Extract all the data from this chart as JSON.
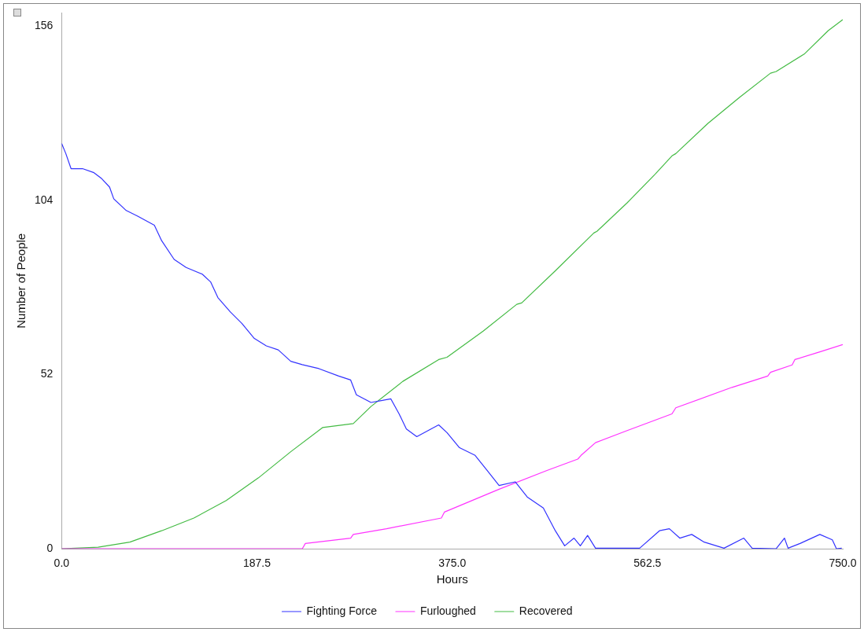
{
  "chart_data": {
    "type": "line",
    "xlabel": "Hours",
    "ylabel": "Number of People",
    "xlim": [
      0,
      750
    ],
    "xticks": [
      {
        "value": 0,
        "label": "0.0"
      },
      {
        "value": 187.5,
        "label": "187.5"
      },
      {
        "value": 375,
        "label": "375.0"
      },
      {
        "value": 562.5,
        "label": "562.5"
      },
      {
        "value": 750,
        "label": "750.0"
      }
    ],
    "ylim": [
      0,
      160
    ],
    "yticks": [
      0,
      52,
      104,
      156
    ],
    "grid": false,
    "legend": "bottom",
    "marker": "none",
    "line_style": "solid",
    "series": [
      {
        "name": "Fighting Force",
        "color": "#3333ff",
        "x": [
          0,
          4,
          9,
          20,
          31,
          38.5,
          46,
          50,
          62,
          73,
          89,
          96,
          108,
          119.5,
          135,
          143,
          150,
          162,
          173,
          185,
          196.5,
          208,
          220,
          231,
          247,
          266,
          277.5,
          283,
          297,
          308,
          316,
          324,
          331,
          341,
          362,
          370,
          382,
          397,
          408.5,
          420,
          435.5,
          447,
          462.5,
          474,
          483,
          492,
          498,
          505,
          512.6,
          555,
          574,
          583.5,
          593.5,
          605,
          617,
          636,
          655,
          663,
          686,
          694,
          697.5,
          709,
          728,
          740,
          744,
          749
        ],
        "values": [
          121,
          118,
          113.5,
          113.5,
          112.3,
          110.5,
          108,
          104.5,
          101,
          99.3,
          96.6,
          92,
          86.4,
          84,
          82,
          79.7,
          75,
          70.7,
          67.3,
          62.8,
          60.6,
          59.4,
          56,
          55,
          53.8,
          51.6,
          50.4,
          46,
          43.7,
          44.3,
          44.8,
          40.3,
          35.8,
          33.5,
          37,
          34.7,
          30.2,
          27.9,
          23.4,
          18.9,
          20,
          15.5,
          12.2,
          5.4,
          0.9,
          3.2,
          0.9,
          4,
          0.2,
          0.2,
          5.4,
          6,
          3.2,
          4.3,
          2,
          0.2,
          3.2,
          0.2,
          0,
          3.2,
          0.2,
          1.6,
          4.3,
          2.7,
          0,
          0.2
        ]
      },
      {
        "name": "Furloughed",
        "color": "#ff33ff",
        "x": [
          0,
          231,
          234,
          277.5,
          280,
          312,
          364.6,
          367.6,
          420,
          466,
          495.6,
          498.7,
          512.6,
          543,
          586,
          589.7,
          643.6,
          678,
          680.6,
          701.4,
          704,
          728,
          750
        ],
        "values": [
          0,
          0,
          1.6,
          3.2,
          4.3,
          6,
          9.2,
          11,
          17.8,
          23.4,
          26.8,
          27.9,
          31.7,
          35.3,
          40.3,
          42.1,
          48.2,
          51.6,
          52.7,
          54.9,
          56.5,
          58.8,
          61
        ]
      },
      {
        "name": "Recovered",
        "color": "#44bb44",
        "x": [
          0,
          35,
          65.5,
          96,
          127,
          158,
          189,
          220,
          250.5,
          280,
          297,
          327.6,
          362,
          370,
          404.7,
          437,
          441.7,
          474,
          511,
          514,
          543,
          570,
          586,
          589.7,
          620.5,
          651,
          680.6,
          686,
          713,
          736,
          750
        ],
        "values": [
          0,
          0.5,
          2,
          5.4,
          9.2,
          14.4,
          21.2,
          29,
          36.2,
          37.4,
          42.5,
          50,
          56.5,
          57.2,
          65,
          73,
          73.4,
          83,
          94.3,
          94.8,
          103.3,
          111.9,
          117.3,
          118,
          127,
          134.8,
          142,
          142.5,
          147.7,
          154.7,
          158
        ]
      }
    ]
  }
}
